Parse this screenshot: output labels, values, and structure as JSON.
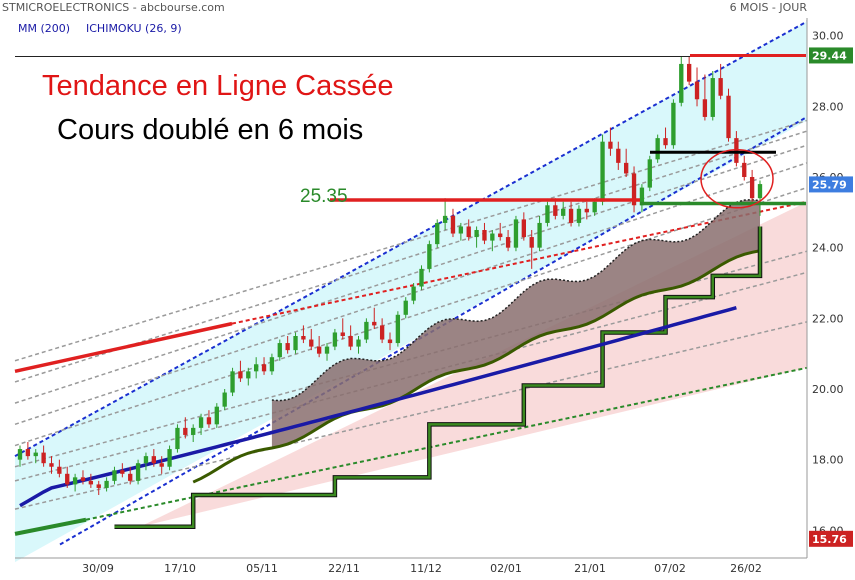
{
  "header": {
    "left": "STMICROELECTRONICS - abcbourse.com",
    "right": "6 MOIS - JOUR"
  },
  "indicators": {
    "ma": "MM (200)",
    "ichimoku": "ICHIMOKU (26, 9)"
  },
  "annotations": {
    "title": "Tendance en Ligne Cassée",
    "subtitle": "Cours doublé en 6 mois",
    "level_label": "25.35"
  },
  "colors": {
    "channel_fill": "#d9f8fb",
    "cloud_fill": "#f7cfcf",
    "candle_up": "#2e9e2e",
    "candle_down": "#cc2222",
    "ma_line": "#1a1aa6",
    "kijun": "#3a5a00",
    "red_line": "#e02020",
    "green_line": "#2a8a2a",
    "badge_green": "#2a8a2a",
    "badge_blue": "#3d7de0",
    "badge_red": "#cc2222"
  },
  "chart_data": {
    "type": "candlestick",
    "ylim": [
      15.5,
      30.5
    ],
    "y_ticks": [
      "16.00",
      "18.00",
      "20.00",
      "22.00",
      "24.00",
      "26.00",
      "28.00",
      "30.00"
    ],
    "x_ticks": [
      "30/09",
      "17/10",
      "05/11",
      "22/11",
      "11/12",
      "02/01",
      "21/01",
      "07/02",
      "26/02"
    ],
    "price_badges": [
      {
        "label": "29.44",
        "value": 29.44,
        "color": "#2a8a2a"
      },
      {
        "label": "25.79",
        "value": 25.79,
        "color": "#3d7de0"
      },
      {
        "label": "15.76",
        "value": 15.76,
        "color": "#cc2222"
      }
    ],
    "levels": {
      "high": 29.44,
      "support": 25.35,
      "neckline": 26.7,
      "green": 25.25
    },
    "candles": [
      [
        18.0,
        18.4,
        17.8,
        18.3
      ],
      [
        18.3,
        18.5,
        18.0,
        18.1
      ],
      [
        18.1,
        18.3,
        17.9,
        18.2
      ],
      [
        18.2,
        18.4,
        17.8,
        17.9
      ],
      [
        17.9,
        18.1,
        17.6,
        17.8
      ],
      [
        17.8,
        18.0,
        17.5,
        17.6
      ],
      [
        17.6,
        17.8,
        17.2,
        17.3
      ],
      [
        17.3,
        17.6,
        17.1,
        17.5
      ],
      [
        17.5,
        17.7,
        17.3,
        17.4
      ],
      [
        17.4,
        17.6,
        17.2,
        17.3
      ],
      [
        17.3,
        17.4,
        17.0,
        17.2
      ],
      [
        17.2,
        17.5,
        17.1,
        17.4
      ],
      [
        17.4,
        17.8,
        17.3,
        17.7
      ],
      [
        17.7,
        17.9,
        17.5,
        17.6
      ],
      [
        17.6,
        17.8,
        17.3,
        17.4
      ],
      [
        17.4,
        18.0,
        17.3,
        17.9
      ],
      [
        17.9,
        18.2,
        17.7,
        18.1
      ],
      [
        18.1,
        18.3,
        17.8,
        17.9
      ],
      [
        17.9,
        18.1,
        17.6,
        17.8
      ],
      [
        17.8,
        18.4,
        17.7,
        18.3
      ],
      [
        18.3,
        19.0,
        18.2,
        18.9
      ],
      [
        18.9,
        19.2,
        18.6,
        18.7
      ],
      [
        18.7,
        19.0,
        18.5,
        18.9
      ],
      [
        18.9,
        19.3,
        18.7,
        19.2
      ],
      [
        19.2,
        19.4,
        18.9,
        19.0
      ],
      [
        19.0,
        19.6,
        18.9,
        19.5
      ],
      [
        19.5,
        20.0,
        19.4,
        19.9
      ],
      [
        19.9,
        20.6,
        19.8,
        20.5
      ],
      [
        20.5,
        20.8,
        20.2,
        20.3
      ],
      [
        20.3,
        20.6,
        20.1,
        20.5
      ],
      [
        20.5,
        20.9,
        20.3,
        20.7
      ],
      [
        20.7,
        20.9,
        20.4,
        20.5
      ],
      [
        20.5,
        21.0,
        20.4,
        20.9
      ],
      [
        20.9,
        21.4,
        20.8,
        21.3
      ],
      [
        21.3,
        21.5,
        21.0,
        21.1
      ],
      [
        21.1,
        21.6,
        21.0,
        21.5
      ],
      [
        21.5,
        21.8,
        21.3,
        21.4
      ],
      [
        21.4,
        21.7,
        21.1,
        21.2
      ],
      [
        21.2,
        21.5,
        20.9,
        21.0
      ],
      [
        21.0,
        21.3,
        20.8,
        21.2
      ],
      [
        21.2,
        21.7,
        21.1,
        21.6
      ],
      [
        21.6,
        22.0,
        21.4,
        21.5
      ],
      [
        21.5,
        21.8,
        21.1,
        21.2
      ],
      [
        21.2,
        21.5,
        21.0,
        21.4
      ],
      [
        21.4,
        22.0,
        21.3,
        21.9
      ],
      [
        21.9,
        22.3,
        21.7,
        21.8
      ],
      [
        21.8,
        22.0,
        21.3,
        21.4
      ],
      [
        21.4,
        21.6,
        21.1,
        21.3
      ],
      [
        21.3,
        22.2,
        21.2,
        22.1
      ],
      [
        22.1,
        22.6,
        22.0,
        22.5
      ],
      [
        22.5,
        23.0,
        22.4,
        22.9
      ],
      [
        22.9,
        23.5,
        22.8,
        23.4
      ],
      [
        23.4,
        24.2,
        23.3,
        24.1
      ],
      [
        24.1,
        24.8,
        24.0,
        24.7
      ],
      [
        24.7,
        25.4,
        24.5,
        24.9
      ],
      [
        24.9,
        25.1,
        24.3,
        24.4
      ],
      [
        24.4,
        24.7,
        24.2,
        24.6
      ],
      [
        24.6,
        24.8,
        24.2,
        24.3
      ],
      [
        24.3,
        24.6,
        24.0,
        24.5
      ],
      [
        24.5,
        24.7,
        24.1,
        24.2
      ],
      [
        24.2,
        24.5,
        23.9,
        24.4
      ],
      [
        24.4,
        24.7,
        24.2,
        24.3
      ],
      [
        24.3,
        24.5,
        23.9,
        24.0
      ],
      [
        24.0,
        24.9,
        23.9,
        24.8
      ],
      [
        24.8,
        25.0,
        24.2,
        24.3
      ],
      [
        24.3,
        24.5,
        23.4,
        24.0
      ],
      [
        24.0,
        24.9,
        23.9,
        24.7
      ],
      [
        24.7,
        25.3,
        24.6,
        25.2
      ],
      [
        25.2,
        25.4,
        24.8,
        24.9
      ],
      [
        24.9,
        25.3,
        24.8,
        25.1
      ],
      [
        25.1,
        25.3,
        24.6,
        24.7
      ],
      [
        24.7,
        25.2,
        24.6,
        25.1
      ],
      [
        25.1,
        25.3,
        24.8,
        25.0
      ],
      [
        25.0,
        25.4,
        24.9,
        25.3
      ],
      [
        25.3,
        27.2,
        25.2,
        27.0
      ],
      [
        27.0,
        27.4,
        26.6,
        26.8
      ],
      [
        26.8,
        27.0,
        26.2,
        26.4
      ],
      [
        26.4,
        26.8,
        26.0,
        26.1
      ],
      [
        26.1,
        26.3,
        25.0,
        25.2
      ],
      [
        25.2,
        25.8,
        25.0,
        25.7
      ],
      [
        25.7,
        26.6,
        25.6,
        26.5
      ],
      [
        26.5,
        27.2,
        26.4,
        27.1
      ],
      [
        27.1,
        27.4,
        26.8,
        26.9
      ],
      [
        26.9,
        28.2,
        26.8,
        28.1
      ],
      [
        28.1,
        29.4,
        28.0,
        29.2
      ],
      [
        29.2,
        29.4,
        28.6,
        28.7
      ],
      [
        28.7,
        29.1,
        28.0,
        28.2
      ],
      [
        28.2,
        28.9,
        27.6,
        27.7
      ],
      [
        27.7,
        29.0,
        27.6,
        28.8
      ],
      [
        28.8,
        29.2,
        28.2,
        28.3
      ],
      [
        28.3,
        28.5,
        27.0,
        27.1
      ],
      [
        27.1,
        27.3,
        26.3,
        26.4
      ],
      [
        26.4,
        26.6,
        25.9,
        26.0
      ],
      [
        26.0,
        26.2,
        25.3,
        25.4
      ],
      [
        25.4,
        25.9,
        24.9,
        25.8
      ]
    ]
  }
}
